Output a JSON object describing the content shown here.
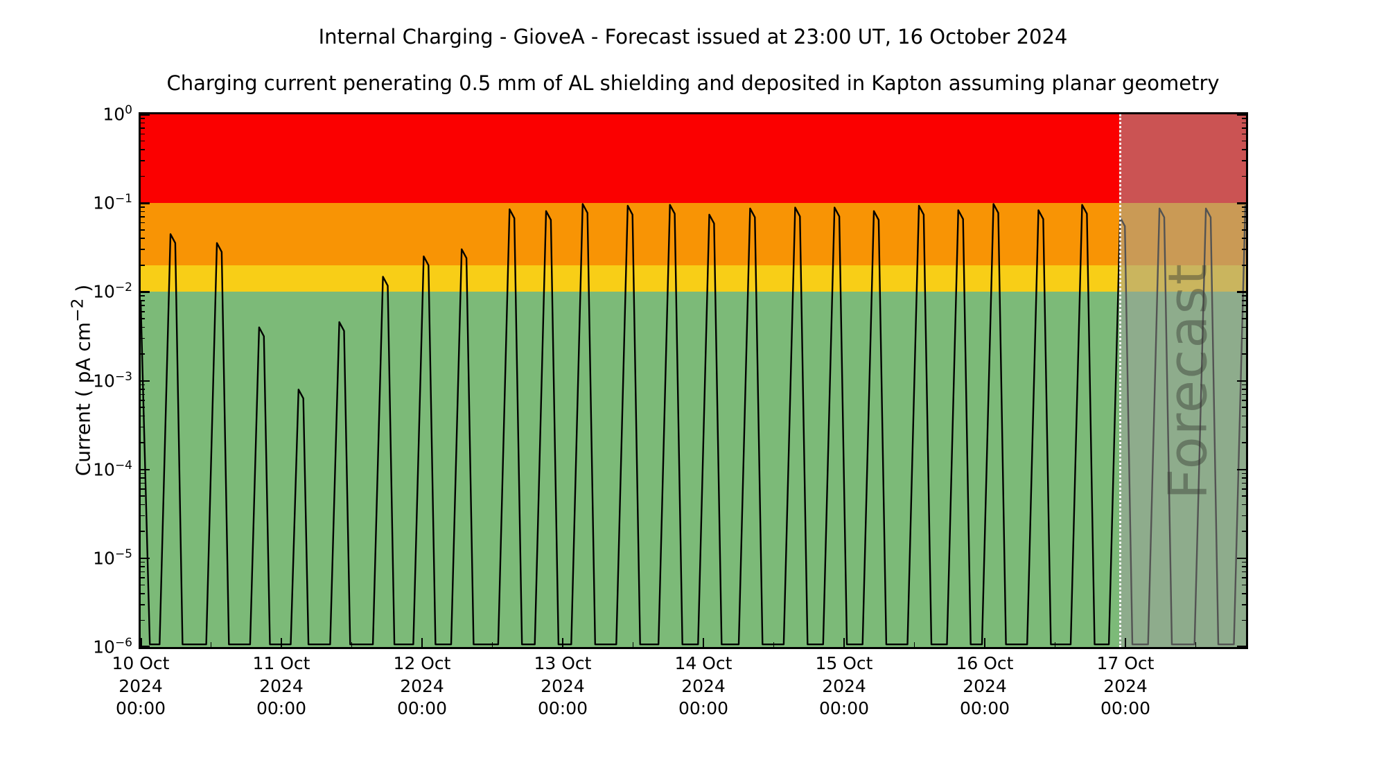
{
  "header": {
    "title": "Internal Charging - GioveA - Forecast issued at 23:00 UT, 16 October 2024",
    "subtitle": "Charging current penerating 0.5 mm of AL shielding and deposited in Kapton assuming planar geometry"
  },
  "watermark": "Forecast",
  "chart_data": {
    "type": "line",
    "title": "Internal Charging - GioveA - Forecast issued at 23:00 UT, 16 October 2024",
    "subtitle": "Charging current penerating 0.5 mm of AL shielding and deposited in Kapton assuming planar geometry",
    "y_scale": "log",
    "ylabel_prefix": "Current ( pA cm",
    "ylabel_sup": "−2",
    "ylabel_suffix": " )",
    "ylim": [
      1e-06,
      1
    ],
    "y_major_exponents": [
      "0",
      "−1",
      "−2",
      "−3",
      "−4",
      "−5",
      "−6"
    ],
    "x_range_days": [
      0,
      7.857
    ],
    "x_minor_step_days": 0.5,
    "x_tick_labels": [
      {
        "date": "10 Oct",
        "year": "2024",
        "time": "00:00"
      },
      {
        "date": "11 Oct",
        "year": "2024",
        "time": "00:00"
      },
      {
        "date": "12 Oct",
        "year": "2024",
        "time": "00:00"
      },
      {
        "date": "13 Oct",
        "year": "2024",
        "time": "00:00"
      },
      {
        "date": "14 Oct",
        "year": "2024",
        "time": "00:00"
      },
      {
        "date": "15 Oct",
        "year": "2024",
        "time": "00:00"
      },
      {
        "date": "16 Oct",
        "year": "2024",
        "time": "00:00"
      },
      {
        "date": "17 Oct",
        "year": "2024",
        "time": "00:00"
      }
    ],
    "forecast_start_day": 6.958,
    "forecast_start_label": "16 Oct 23:00 UT",
    "risk_bands": [
      {
        "name": "red",
        "log10_from": -1.0,
        "log10_to": 0.0,
        "color": "#fb0000"
      },
      {
        "name": "orange",
        "log10_from": -1.699,
        "log10_to": -1.0,
        "color": "#f89405"
      },
      {
        "name": "yellow",
        "log10_from": -2.0,
        "log10_to": -1.699,
        "color": "#f8ce17"
      },
      {
        "name": "green",
        "log10_from": -6.0,
        "log10_to": -2.0,
        "color": "#7cba78"
      }
    ],
    "forecast_overlay_color": "rgba(160,160,160,0.52)",
    "forecast_line_color": "#ffffff",
    "watermark_color": "rgba(55,60,50,0.45)",
    "series": [
      {
        "name": "internal charging current",
        "color": "#000000",
        "baseline_log10": -5.97,
        "start_point_day_log10": [
          0.0,
          -2.1
        ],
        "peaks_day_log10": [
          [
            0.23,
            -1.35
          ],
          [
            0.56,
            -1.45
          ],
          [
            0.86,
            -2.4
          ],
          [
            1.14,
            -3.1
          ],
          [
            1.43,
            -2.34
          ],
          [
            1.74,
            -1.83
          ],
          [
            2.03,
            -1.6
          ],
          [
            2.3,
            -1.52
          ],
          [
            2.64,
            -1.07
          ],
          [
            2.9,
            -1.09
          ],
          [
            3.16,
            -1.01
          ],
          [
            3.48,
            -1.03
          ],
          [
            3.78,
            -1.02
          ],
          [
            4.06,
            -1.13
          ],
          [
            4.35,
            -1.06
          ],
          [
            4.67,
            -1.05
          ],
          [
            4.95,
            -1.05
          ],
          [
            5.23,
            -1.09
          ],
          [
            5.55,
            -1.03
          ],
          [
            5.83,
            -1.08
          ],
          [
            6.08,
            -1.01
          ],
          [
            6.4,
            -1.08
          ],
          [
            6.71,
            -1.02
          ],
          [
            6.98,
            -1.16
          ],
          [
            7.26,
            -1.06
          ],
          [
            7.59,
            -1.06
          ],
          [
            7.87,
            -1.03
          ]
        ]
      }
    ]
  }
}
